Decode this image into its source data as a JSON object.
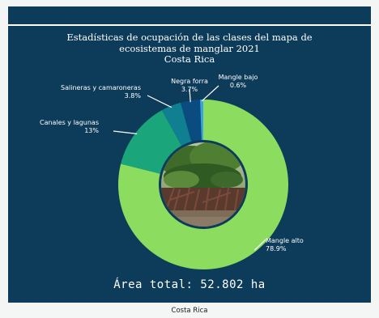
{
  "chart_data": {
    "type": "pie",
    "donut": true,
    "title": [
      "Estadísticas de ocupación de las clases del mapa de",
      "ecosistemas de manglar 2021",
      "Costa Rica"
    ],
    "slices": [
      {
        "name": "Mangle alto",
        "label": "78.9%",
        "value": 78.9,
        "color": "#8bdc5f"
      },
      {
        "name": "Canales y lagunas",
        "label": "13%",
        "value": 13.0,
        "color": "#1aa67a"
      },
      {
        "name": "Salineras  y camaroneras",
        "label": "3.8%",
        "value": 3.8,
        "color": "#0f7f91"
      },
      {
        "name": "Negra forra",
        "label": "3.7%",
        "value": 3.7,
        "color": "#0a4c7f"
      },
      {
        "name": "Mangle bajo",
        "label": "0.6%",
        "value": 0.6,
        "color": "#3ba3df"
      }
    ],
    "total_text": "Área total: 52.802 ha",
    "background": "#0d3b5a"
  },
  "footer": {
    "caption": "Costa Rica"
  }
}
